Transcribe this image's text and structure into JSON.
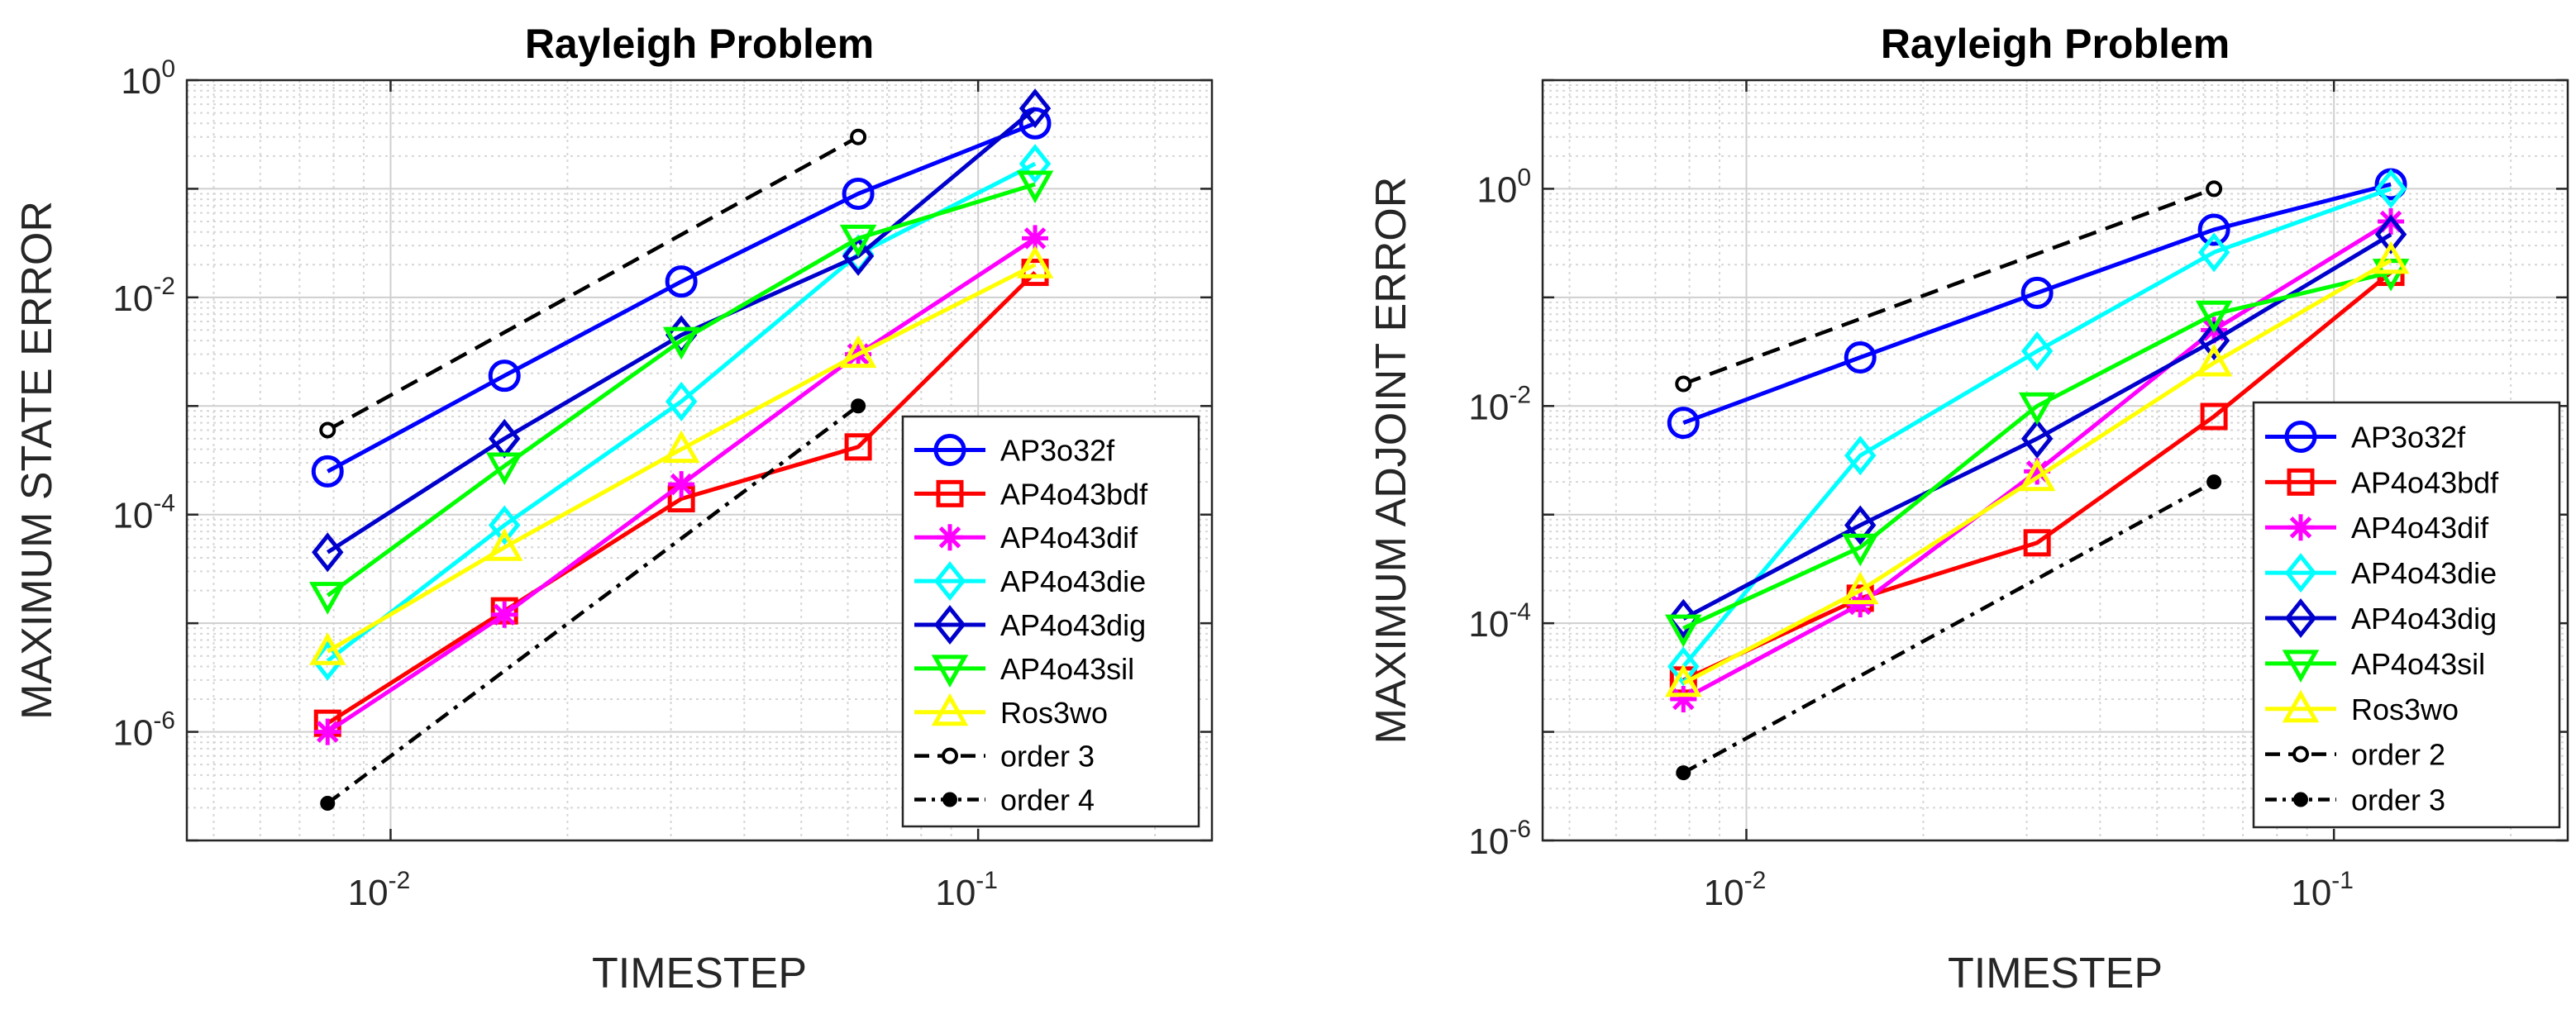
{
  "chart_data": [
    {
      "type": "line",
      "scale": "loglog",
      "title": "Rayleigh Problem",
      "xlabel": "TIMESTEP",
      "ylabel": "MAXIMUM STATE ERROR",
      "xlim": [
        0.0045,
        0.25
      ],
      "ylim": [
        1e-07,
        1
      ],
      "xticks": [
        {
          "base": "10",
          "exp": "-2",
          "value": 0.01
        },
        {
          "base": "10",
          "exp": "-1",
          "value": 0.1
        }
      ],
      "yticks": [
        {
          "base": "10",
          "exp": "0",
          "value": 1
        },
        {
          "base": "10",
          "exp": "-2",
          "value": 0.01
        },
        {
          "base": "10",
          "exp": "-4",
          "value": 0.0001
        },
        {
          "base": "10",
          "exp": "-6",
          "value": 1e-06
        }
      ],
      "grid": true,
      "legend_location": "bottom-right",
      "x": [
        0.0078125,
        0.015625,
        0.03125,
        0.0625,
        0.125
      ],
      "series": [
        {
          "name": "AP3o32f",
          "color": "#0000ff",
          "marker": "circle",
          "line": "solid",
          "values": [
            0.00025,
            0.0019,
            0.014,
            0.09,
            0.4
          ]
        },
        {
          "name": "AP4o43bdf",
          "color": "#ff0000",
          "marker": "square",
          "line": "solid",
          "values": [
            1.2e-06,
            1.3e-05,
            0.00014,
            0.00042,
            0.017
          ]
        },
        {
          "name": "AP4o43dif",
          "color": "#ff00ff",
          "marker": "asterisk",
          "line": "solid",
          "values": [
            1e-06,
            1.2e-05,
            0.00019,
            0.003,
            0.035
          ]
        },
        {
          "name": "AP4o43die",
          "color": "#00ffff",
          "marker": "diamond",
          "line": "solid",
          "values": [
            4.5e-06,
            8e-05,
            0.0011,
            0.025,
            0.17
          ]
        },
        {
          "name": "AP4o43dig",
          "color": "#0000cd",
          "marker": "diamond",
          "line": "solid",
          "values": [
            4.5e-05,
            0.0005,
            0.0045,
            0.024,
            0.55
          ]
        },
        {
          "name": "AP4o43sil",
          "color": "#00ff00",
          "marker": "triangle-down",
          "line": "solid",
          "values": [
            1.8e-05,
            0.00028,
            0.004,
            0.035,
            0.11
          ]
        },
        {
          "name": "Ros3wo",
          "color": "#ffff00",
          "marker": "triangle-up",
          "line": "solid",
          "values": [
            5.5e-06,
            5e-05,
            0.0004,
            0.003,
            0.02
          ]
        },
        {
          "name": "order 3",
          "color": "#000000",
          "marker": "small-circle-open",
          "line": "dashed",
          "x": [
            0.0078125,
            0.0625
          ],
          "values": [
            0.0006,
            0.3
          ]
        },
        {
          "name": "order 4",
          "color": "#000000",
          "marker": "small-dot",
          "line": "dashdot",
          "x": [
            0.0078125,
            0.0625
          ],
          "values": [
            2.2e-07,
            0.001
          ]
        }
      ]
    },
    {
      "type": "line",
      "scale": "loglog",
      "title": "Rayleigh Problem",
      "xlabel": "TIMESTEP",
      "ylabel": "MAXIMUM ADJOINT ERROR",
      "xlim": [
        0.0045,
        0.25
      ],
      "ylim": [
        1e-06,
        10
      ],
      "xticks": [
        {
          "base": "10",
          "exp": "-2",
          "value": 0.01
        },
        {
          "base": "10",
          "exp": "-1",
          "value": 0.1
        }
      ],
      "yticks": [
        {
          "base": "10",
          "exp": "0",
          "value": 1
        },
        {
          "base": "10",
          "exp": "-2",
          "value": 0.01
        },
        {
          "base": "10",
          "exp": "-4",
          "value": 0.0001
        },
        {
          "base": "10",
          "exp": "-6",
          "value": 1e-06
        }
      ],
      "grid": true,
      "legend_location": "bottom-right",
      "x": [
        0.0078125,
        0.015625,
        0.03125,
        0.0625,
        0.125
      ],
      "series": [
        {
          "name": "AP3o32f",
          "color": "#0000ff",
          "marker": "circle",
          "line": "solid",
          "values": [
            0.007,
            0.028,
            0.11,
            0.42,
            1.1
          ]
        },
        {
          "name": "AP4o43bdf",
          "color": "#ff0000",
          "marker": "square",
          "line": "solid",
          "values": [
            3e-05,
            0.00017,
            0.00055,
            0.008,
            0.17
          ]
        },
        {
          "name": "AP4o43dif",
          "color": "#ff00ff",
          "marker": "asterisk",
          "line": "solid",
          "values": [
            2e-05,
            0.00015,
            0.0025,
            0.05,
            0.5
          ]
        },
        {
          "name": "AP4o43die",
          "color": "#00ffff",
          "marker": "diamond",
          "line": "solid",
          "values": [
            4e-05,
            0.0035,
            0.032,
            0.26,
            1.0
          ]
        },
        {
          "name": "AP4o43dig",
          "color": "#0000cd",
          "marker": "diamond",
          "line": "solid",
          "values": [
            0.00011,
            0.0008,
            0.005,
            0.04,
            0.38
          ]
        },
        {
          "name": "AP4o43sil",
          "color": "#00ff00",
          "marker": "triangle-down",
          "line": "solid",
          "values": [
            9e-05,
            0.0005,
            0.01,
            0.07,
            0.17
          ]
        },
        {
          "name": "Ros3wo",
          "color": "#ffff00",
          "marker": "triangle-up",
          "line": "solid",
          "values": [
            2.8e-05,
            0.0002,
            0.0022,
            0.025,
            0.22
          ]
        },
        {
          "name": "order 2",
          "color": "#000000",
          "marker": "small-circle-open",
          "line": "dashed",
          "x": [
            0.0078125,
            0.0625
          ],
          "values": [
            0.016,
            1.0
          ]
        },
        {
          "name": "order 3",
          "color": "#000000",
          "marker": "small-dot",
          "line": "dashdot",
          "x": [
            0.0078125,
            0.0625
          ],
          "values": [
            4.2e-06,
            0.002
          ]
        }
      ]
    }
  ]
}
